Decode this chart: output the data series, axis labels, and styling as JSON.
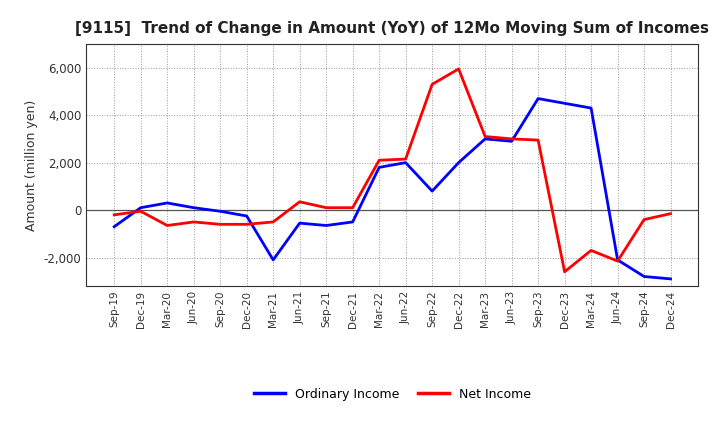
{
  "title": "[9115]  Trend of Change in Amount (YoY) of 12Mo Moving Sum of Incomes",
  "ylabel": "Amount (million yen)",
  "x_labels": [
    "Sep-19",
    "Dec-19",
    "Mar-20",
    "Jun-20",
    "Sep-20",
    "Dec-20",
    "Mar-21",
    "Jun-21",
    "Sep-21",
    "Dec-21",
    "Mar-22",
    "Jun-22",
    "Sep-22",
    "Dec-22",
    "Mar-23",
    "Jun-23",
    "Sep-23",
    "Dec-23",
    "Mar-24",
    "Jun-24",
    "Sep-24",
    "Dec-24"
  ],
  "ordinary_income": [
    -700,
    100,
    300,
    100,
    -50,
    -250,
    -2100,
    -550,
    -650,
    -500,
    1800,
    2000,
    800,
    2000,
    3000,
    2900,
    4700,
    4500,
    4300,
    -2100,
    -2800,
    -2900
  ],
  "net_income": [
    -200,
    -50,
    -650,
    -500,
    -600,
    -600,
    -500,
    350,
    100,
    100,
    2100,
    2150,
    5300,
    5950,
    3100,
    3000,
    2950,
    -2600,
    -1700,
    -2150,
    -400,
    -150
  ],
  "ordinary_income_color": "#0000FF",
  "net_income_color": "#FF0000",
  "ylim": [
    -3200,
    7000
  ],
  "yticks": [
    -2000,
    0,
    2000,
    4000,
    6000
  ],
  "background_color": "#FFFFFF",
  "grid_color": "#999999",
  "line_width": 2.0
}
